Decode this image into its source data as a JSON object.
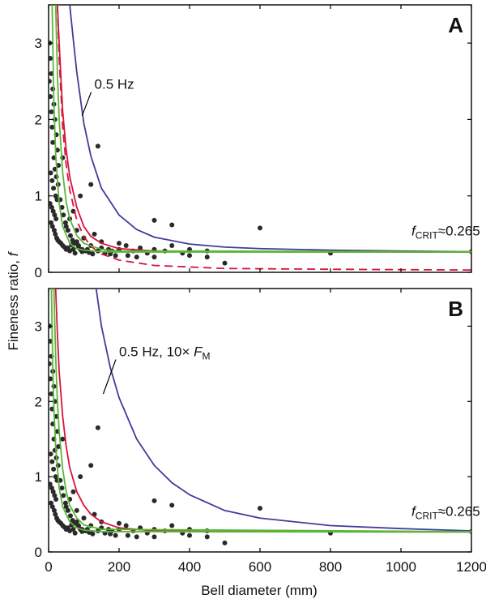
{
  "figure": {
    "ylabel": "Fineness ratio, f",
    "xlabel": "Bell diameter (mm)"
  },
  "colors": {
    "blue_curve": "#3f3d9a",
    "red_curve": "#d6143c",
    "green_curve": "#5cb53a",
    "points": "#2a2a2a",
    "axis": "#000000"
  },
  "chart_data": [
    {
      "type": "scatter",
      "panel": "A",
      "xlim": [
        0,
        1200
      ],
      "ylim": [
        0,
        3.5
      ],
      "xticks": [
        0,
        200,
        400,
        600,
        800,
        1000,
        1200
      ],
      "yticks": [
        0,
        1,
        2,
        3
      ],
      "show_x_tick_labels": false,
      "grid": false,
      "annotations": [
        {
          "text": "0.5 Hz",
          "at": [
            130,
            2.4
          ],
          "pointer_to": [
            95,
            2.05
          ]
        },
        {
          "text_main": "f",
          "text_sub": "CRIT",
          "text_rest": "≈0.265",
          "at": [
            1030,
            0.48
          ]
        }
      ],
      "curves": [
        {
          "color": "blue",
          "style": "solid",
          "asymptote": 0.265,
          "x": [
            60,
            70,
            80,
            100,
            120,
            150,
            200,
            250,
            300,
            400,
            500,
            600,
            800,
            1000,
            1200
          ],
          "y": [
            3.5,
            3.05,
            2.62,
            1.95,
            1.52,
            1.1,
            0.75,
            0.56,
            0.46,
            0.37,
            0.33,
            0.31,
            0.29,
            0.28,
            0.27
          ]
        },
        {
          "color": "red",
          "style": "solid",
          "asymptote": 0.265,
          "x": [
            25,
            30,
            40,
            50,
            60,
            80,
            100,
            120,
            150,
            200,
            300,
            500,
            1200
          ],
          "y": [
            3.5,
            3.0,
            2.1,
            1.6,
            1.25,
            0.85,
            0.6,
            0.47,
            0.38,
            0.31,
            0.28,
            0.27,
            0.265
          ]
        },
        {
          "color": "red",
          "style": "dashed",
          "asymptote": 0.03,
          "x": [
            25,
            30,
            40,
            50,
            60,
            80,
            100,
            120,
            150,
            200,
            300,
            500,
            800,
            1200
          ],
          "y": [
            3.5,
            2.8,
            1.9,
            1.4,
            1.08,
            0.68,
            0.47,
            0.34,
            0.24,
            0.16,
            0.09,
            0.05,
            0.04,
            0.03
          ]
        },
        {
          "color": "green",
          "style": "solid",
          "asymptote": 0.265,
          "x": [
            10,
            15,
            20,
            30,
            40,
            60,
            80,
            100,
            150,
            200,
            1200
          ],
          "y": [
            3.5,
            2.2,
            1.55,
            0.9,
            0.6,
            0.38,
            0.31,
            0.29,
            0.27,
            0.265,
            0.265
          ]
        },
        {
          "color": "green",
          "style": "solid",
          "asymptote": 0.265,
          "x": [
            20,
            25,
            30,
            40,
            50,
            60,
            80,
            100,
            150,
            200,
            1200
          ],
          "y": [
            3.5,
            2.6,
            2.0,
            1.3,
            0.92,
            0.7,
            0.48,
            0.38,
            0.3,
            0.28,
            0.27
          ]
        }
      ],
      "points": {
        "x": [
          3,
          5,
          8,
          12,
          15,
          18,
          22,
          25,
          28,
          6,
          10,
          14,
          20,
          24,
          4,
          9,
          13,
          17,
          21,
          7,
          11,
          16,
          19,
          23,
          26,
          30,
          35,
          40,
          45,
          50,
          55,
          60,
          65,
          70,
          75,
          80,
          85,
          90,
          95,
          100,
          110,
          120,
          130,
          140,
          150,
          160,
          170,
          180,
          190,
          200,
          220,
          240,
          260,
          280,
          300,
          330,
          350,
          380,
          400,
          450,
          500,
          600,
          800,
          1200,
          140,
          300,
          350,
          300,
          120,
          90,
          70,
          50,
          40,
          60,
          80,
          100,
          150,
          200,
          250,
          2,
          5,
          8,
          10,
          12,
          15,
          18,
          22,
          27,
          33,
          38,
          42,
          48,
          55,
          62,
          68,
          75,
          85,
          95,
          105,
          115,
          125,
          175,
          225,
          400,
          450
        ],
        "y": [
          3.0,
          2.8,
          2.6,
          2.4,
          2.2,
          2.0,
          1.8,
          1.6,
          1.4,
          1.3,
          1.2,
          1.1,
          1.0,
          0.95,
          0.9,
          0.85,
          0.8,
          0.75,
          0.7,
          0.65,
          0.6,
          0.55,
          0.5,
          0.45,
          0.42,
          0.4,
          0.38,
          0.35,
          0.33,
          0.3,
          0.32,
          0.28,
          0.36,
          0.3,
          0.25,
          0.4,
          0.35,
          0.3,
          0.27,
          0.45,
          0.3,
          0.35,
          0.5,
          0.28,
          0.32,
          0.25,
          0.3,
          0.28,
          0.22,
          0.3,
          0.35,
          0.28,
          0.32,
          0.25,
          0.3,
          0.28,
          0.35,
          0.25,
          0.3,
          0.28,
          0.12,
          0.58,
          0.25,
          0.27,
          1.65,
          0.68,
          0.62,
          0.2,
          1.15,
          1.0,
          0.8,
          0.6,
          1.5,
          0.7,
          0.55,
          0.45,
          0.4,
          0.38,
          0.2,
          2.5,
          2.3,
          2.1,
          1.9,
          1.7,
          1.5,
          1.35,
          1.25,
          1.15,
          0.95,
          0.85,
          0.75,
          0.65,
          0.55,
          0.48,
          0.42,
          0.38,
          0.34,
          0.3,
          0.28,
          0.26,
          0.24,
          0.24,
          0.22,
          0.22,
          0.2
        ]
      }
    },
    {
      "type": "scatter",
      "panel": "B",
      "xlim": [
        0,
        1200
      ],
      "ylim": [
        0,
        3.5
      ],
      "xticks": [
        0,
        200,
        400,
        600,
        800,
        1000,
        1200
      ],
      "yticks": [
        0,
        1,
        2,
        3
      ],
      "show_x_tick_labels": true,
      "grid": false,
      "annotations": [
        {
          "text": "0.5 Hz, 10×",
          "text_italic": "F",
          "text_sub": "M",
          "at": [
            200,
            2.6
          ],
          "pointer_to": [
            155,
            2.1
          ]
        },
        {
          "text_main": "f",
          "text_sub": "CRIT",
          "text_rest": "≈0.265",
          "at": [
            1030,
            0.48
          ]
        }
      ],
      "curves": [
        {
          "color": "blue",
          "style": "solid",
          "asymptote": 0.265,
          "x": [
            135,
            150,
            175,
            200,
            250,
            300,
            350,
            400,
            500,
            600,
            800,
            1000,
            1200
          ],
          "y": [
            3.5,
            3.0,
            2.45,
            2.05,
            1.5,
            1.15,
            0.92,
            0.76,
            0.55,
            0.45,
            0.35,
            0.31,
            0.28
          ]
        },
        {
          "color": "red",
          "style": "solid",
          "asymptote": 0.265,
          "x": [
            20,
            25,
            30,
            40,
            50,
            60,
            80,
            100,
            120,
            150,
            200,
            300,
            500,
            1200
          ],
          "y": [
            3.5,
            2.9,
            2.4,
            1.8,
            1.4,
            1.12,
            0.8,
            0.62,
            0.5,
            0.4,
            0.32,
            0.28,
            0.27,
            0.265
          ]
        },
        {
          "color": "green",
          "style": "solid",
          "asymptote": 0.265,
          "x": [
            8,
            12,
            15,
            20,
            30,
            40,
            60,
            80,
            100,
            150,
            1200
          ],
          "y": [
            3.5,
            2.4,
            1.9,
            1.4,
            0.85,
            0.6,
            0.4,
            0.32,
            0.29,
            0.27,
            0.265
          ]
        },
        {
          "color": "green",
          "style": "solid",
          "asymptote": 0.265,
          "x": [
            15,
            20,
            25,
            30,
            40,
            50,
            60,
            80,
            100,
            150,
            1200
          ],
          "y": [
            3.5,
            2.6,
            2.0,
            1.6,
            1.1,
            0.8,
            0.62,
            0.45,
            0.36,
            0.3,
            0.27
          ]
        }
      ],
      "points": {
        "x": [
          3,
          5,
          8,
          12,
          15,
          18,
          22,
          25,
          28,
          6,
          10,
          14,
          20,
          24,
          4,
          9,
          13,
          17,
          21,
          7,
          11,
          16,
          19,
          23,
          26,
          30,
          35,
          40,
          45,
          50,
          55,
          60,
          65,
          70,
          75,
          80,
          85,
          90,
          95,
          100,
          110,
          120,
          130,
          140,
          150,
          160,
          170,
          180,
          190,
          200,
          220,
          240,
          260,
          280,
          300,
          330,
          350,
          380,
          400,
          450,
          500,
          600,
          800,
          1200,
          140,
          300,
          350,
          300,
          120,
          90,
          70,
          50,
          40,
          60,
          80,
          100,
          150,
          200,
          250,
          2,
          5,
          8,
          10,
          12,
          15,
          18,
          22,
          27,
          33,
          38,
          42,
          48,
          55,
          62,
          68,
          75,
          85,
          95,
          105,
          115,
          125,
          175,
          225,
          400,
          450
        ],
        "y": [
          3.0,
          2.8,
          2.6,
          2.4,
          2.2,
          2.0,
          1.8,
          1.6,
          1.4,
          1.3,
          1.2,
          1.1,
          1.0,
          0.95,
          0.9,
          0.85,
          0.8,
          0.75,
          0.7,
          0.65,
          0.6,
          0.55,
          0.5,
          0.45,
          0.42,
          0.4,
          0.38,
          0.35,
          0.33,
          0.3,
          0.32,
          0.28,
          0.36,
          0.3,
          0.25,
          0.4,
          0.35,
          0.3,
          0.27,
          0.45,
          0.3,
          0.35,
          0.5,
          0.28,
          0.32,
          0.25,
          0.3,
          0.28,
          0.22,
          0.3,
          0.35,
          0.28,
          0.32,
          0.25,
          0.3,
          0.28,
          0.35,
          0.25,
          0.3,
          0.28,
          0.12,
          0.58,
          0.25,
          0.27,
          1.65,
          0.68,
          0.62,
          0.2,
          1.15,
          1.0,
          0.8,
          0.6,
          1.5,
          0.7,
          0.55,
          0.45,
          0.4,
          0.38,
          0.2,
          2.5,
          2.3,
          2.1,
          1.9,
          1.7,
          1.5,
          1.35,
          1.25,
          1.15,
          0.95,
          0.85,
          0.75,
          0.65,
          0.55,
          0.48,
          0.42,
          0.38,
          0.34,
          0.3,
          0.28,
          0.26,
          0.24,
          0.24,
          0.22,
          0.22,
          0.2
        ]
      }
    }
  ]
}
